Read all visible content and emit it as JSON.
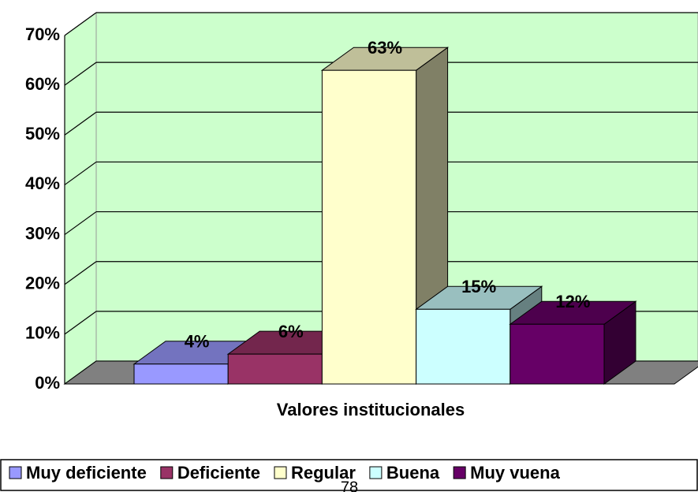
{
  "chart_data": {
    "type": "bar3d",
    "categories": [
      "Valores institucionales"
    ],
    "series": [
      {
        "name": "Muy deficiente",
        "color": "#9999ff",
        "values": [
          4
        ],
        "value_labels": [
          "4%"
        ]
      },
      {
        "name": "Deficiente",
        "color": "#993366",
        "values": [
          6
        ],
        "value_labels": [
          "6%"
        ]
      },
      {
        "name": "Regular",
        "color": "#ffffcc",
        "values": [
          63
        ],
        "value_labels": [
          "63%"
        ]
      },
      {
        "name": "Buena",
        "color": "#ccffff",
        "values": [
          15
        ],
        "value_labels": [
          "15%"
        ]
      },
      {
        "name": "Muy vuena",
        "color": "#660066",
        "values": [
          12
        ],
        "value_labels": [
          "12%"
        ]
      }
    ],
    "ylim": [
      0,
      70
    ],
    "yticks": [
      {
        "value": 0,
        "label": "0%"
      },
      {
        "value": 10,
        "label": "10%"
      },
      {
        "value": 20,
        "label": "20%"
      },
      {
        "value": 30,
        "label": "30%"
      },
      {
        "value": 40,
        "label": "40%"
      },
      {
        "value": 50,
        "label": "50%"
      },
      {
        "value": 60,
        "label": "60%"
      },
      {
        "value": 70,
        "label": "70%"
      }
    ],
    "grid": true,
    "wall_color": "#ccffcc",
    "floor_color": "#808080",
    "legend": "bottom",
    "annotations": [
      "78"
    ]
  }
}
